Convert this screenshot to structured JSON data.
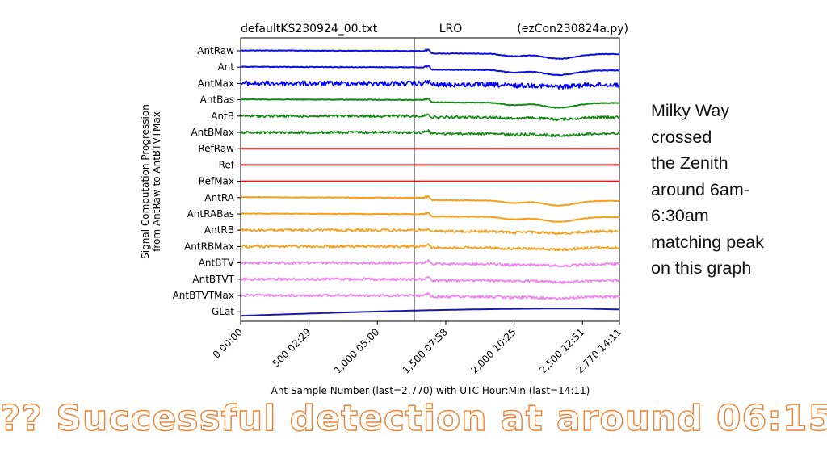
{
  "chart_data": {
    "type": "line",
    "title_left": "defaultKS230924_00.txt",
    "title_center": "LRO",
    "title_right": "(ezCon230824a.py)",
    "ylabel": [
      "Signal Computation Progression",
      "from AntRaw to AntBTVTMax"
    ],
    "xlabel": "Ant Sample Number (last=2,770) with UTC Hour:Min (last=14:11)",
    "xlim": [
      0,
      2770
    ],
    "x_ticks": [
      {
        "value": 0,
        "label": "0  00:00"
      },
      {
        "value": 500,
        "label": "500  02:29"
      },
      {
        "value": 1000,
        "label": "1,000  05:00"
      },
      {
        "value": 1500,
        "label": "1,500  07:58"
      },
      {
        "value": 2000,
        "label": "2,000  10:25"
      },
      {
        "value": 2500,
        "label": "2,500  12:51"
      },
      {
        "value": 2770,
        "label": "2,770  14:11"
      }
    ],
    "marker_line_x": 1270,
    "series": [
      {
        "name": "AntRaw",
        "color": "#1010dd",
        "style": "smooth"
      },
      {
        "name": "Ant",
        "color": "#1010dd",
        "style": "smooth"
      },
      {
        "name": "AntMax",
        "color": "#0000ff",
        "style": "noisy"
      },
      {
        "name": "AntBas",
        "color": "#138a13",
        "style": "smooth"
      },
      {
        "name": "AntB",
        "color": "#138a13",
        "style": "noisy"
      },
      {
        "name": "AntBMax",
        "color": "#138a13",
        "style": "noisy"
      },
      {
        "name": "RefRaw",
        "color": "#dd1111",
        "style": "flat"
      },
      {
        "name": "Ref",
        "color": "#dd1111",
        "style": "flat"
      },
      {
        "name": "RefMax",
        "color": "#dd1111",
        "style": "flat"
      },
      {
        "name": "AntRA",
        "color": "#f5a01c",
        "style": "smooth"
      },
      {
        "name": "AntRABas",
        "color": "#f5a01c",
        "style": "smooth"
      },
      {
        "name": "AntRB",
        "color": "#f5a01c",
        "style": "noisy"
      },
      {
        "name": "AntRBMax",
        "color": "#f5a01c",
        "style": "noisy"
      },
      {
        "name": "AntBTV",
        "color": "#ee82ee",
        "style": "noisy"
      },
      {
        "name": "AntBTVT",
        "color": "#ee82ee",
        "style": "noisy"
      },
      {
        "name": "AntBTVTMax",
        "color": "#ee82ee",
        "style": "noisy"
      },
      {
        "name": "GLat",
        "color": "#1a1aaa",
        "style": "curve"
      }
    ]
  },
  "annotation": {
    "lines": [
      "Milky Way",
      "crossed",
      "the Zenith",
      "around 6am-",
      "6:30am",
      "matching peak",
      "on this graph"
    ]
  },
  "headline": "?? Successful detection at around 06:15"
}
